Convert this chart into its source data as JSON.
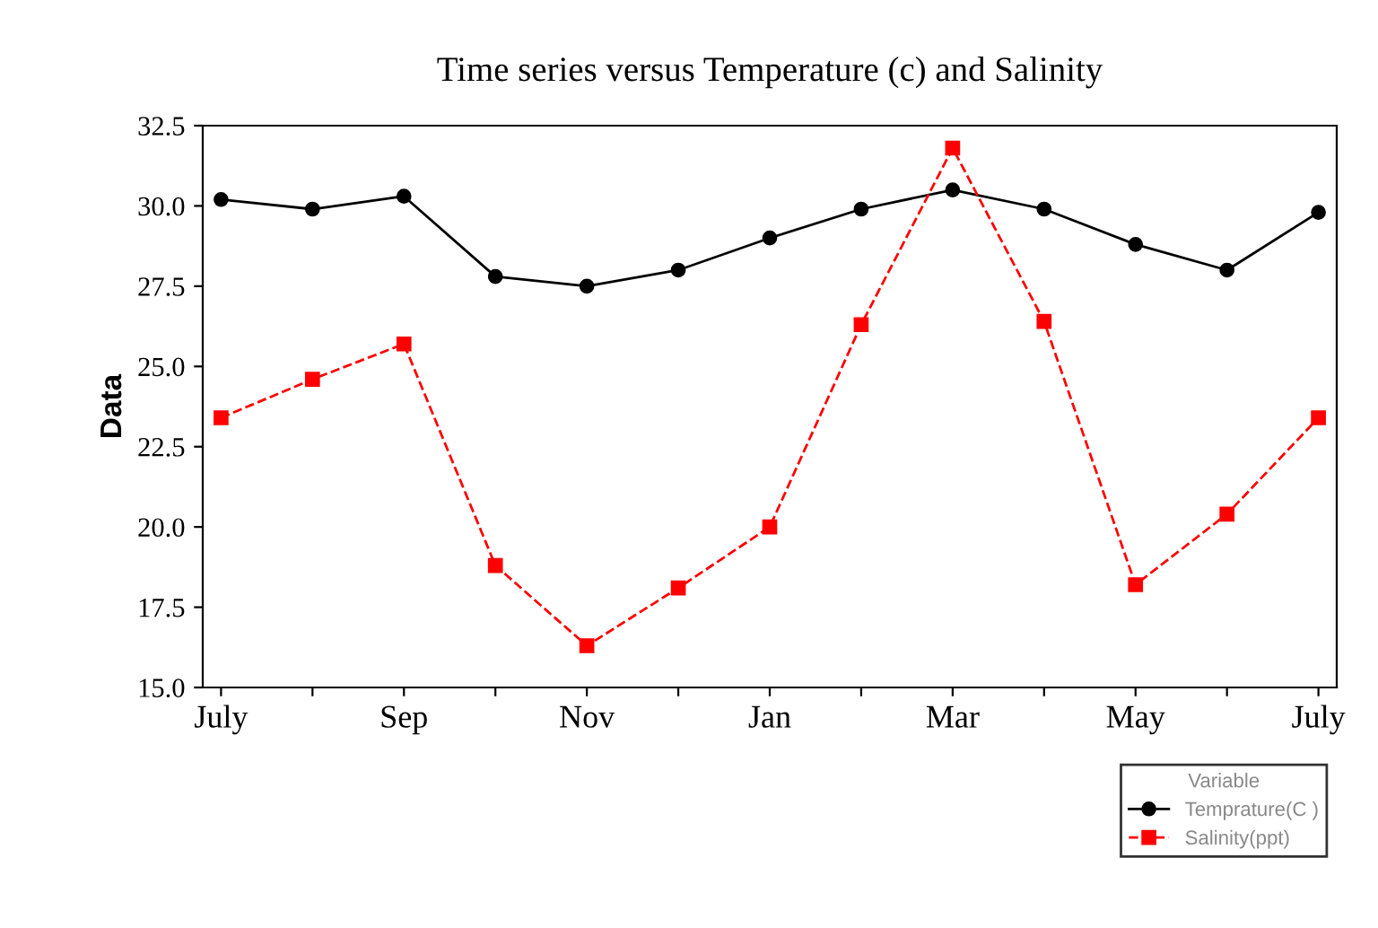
{
  "chart_data": {
    "type": "line",
    "title": "Time series versus Temperature (c) and Salinity",
    "ylabel": "Data",
    "legend_title": "Variable",
    "categories": [
      "July",
      null,
      "Sep",
      null,
      "Nov",
      null,
      "Jan",
      null,
      "Mar",
      null,
      "May",
      null,
      "July"
    ],
    "series": [
      {
        "name": "Temprature(C )",
        "color": "#000000",
        "marker": "circle",
        "line_style": "solid",
        "values": [
          30.2,
          29.9,
          30.3,
          27.8,
          27.5,
          28.0,
          29.0,
          29.9,
          30.5,
          29.9,
          28.8,
          28.0,
          29.8
        ]
      },
      {
        "name": "Salinity(ppt)",
        "color": "#ff0000",
        "marker": "square",
        "line_style": "dashed",
        "values": [
          23.4,
          24.6,
          25.7,
          18.8,
          16.3,
          18.1,
          20.0,
          26.3,
          31.8,
          26.4,
          18.2,
          20.4,
          23.4
        ]
      }
    ],
    "ylim": [
      15.0,
      32.5
    ],
    "yticks": [
      {
        "value": 15,
        "label": "15.0"
      },
      {
        "value": 17.5,
        "label": "17.5"
      },
      {
        "value": 20,
        "label": "20.0"
      },
      {
        "value": 22.5,
        "label": "22.5"
      },
      {
        "value": 25,
        "label": "25.0"
      },
      {
        "value": 27.5,
        "label": "27.5"
      },
      {
        "value": 30,
        "label": "30.0"
      },
      {
        "value": 32.5,
        "label": "32.5"
      }
    ],
    "grid": false,
    "legend": "bottom right"
  }
}
